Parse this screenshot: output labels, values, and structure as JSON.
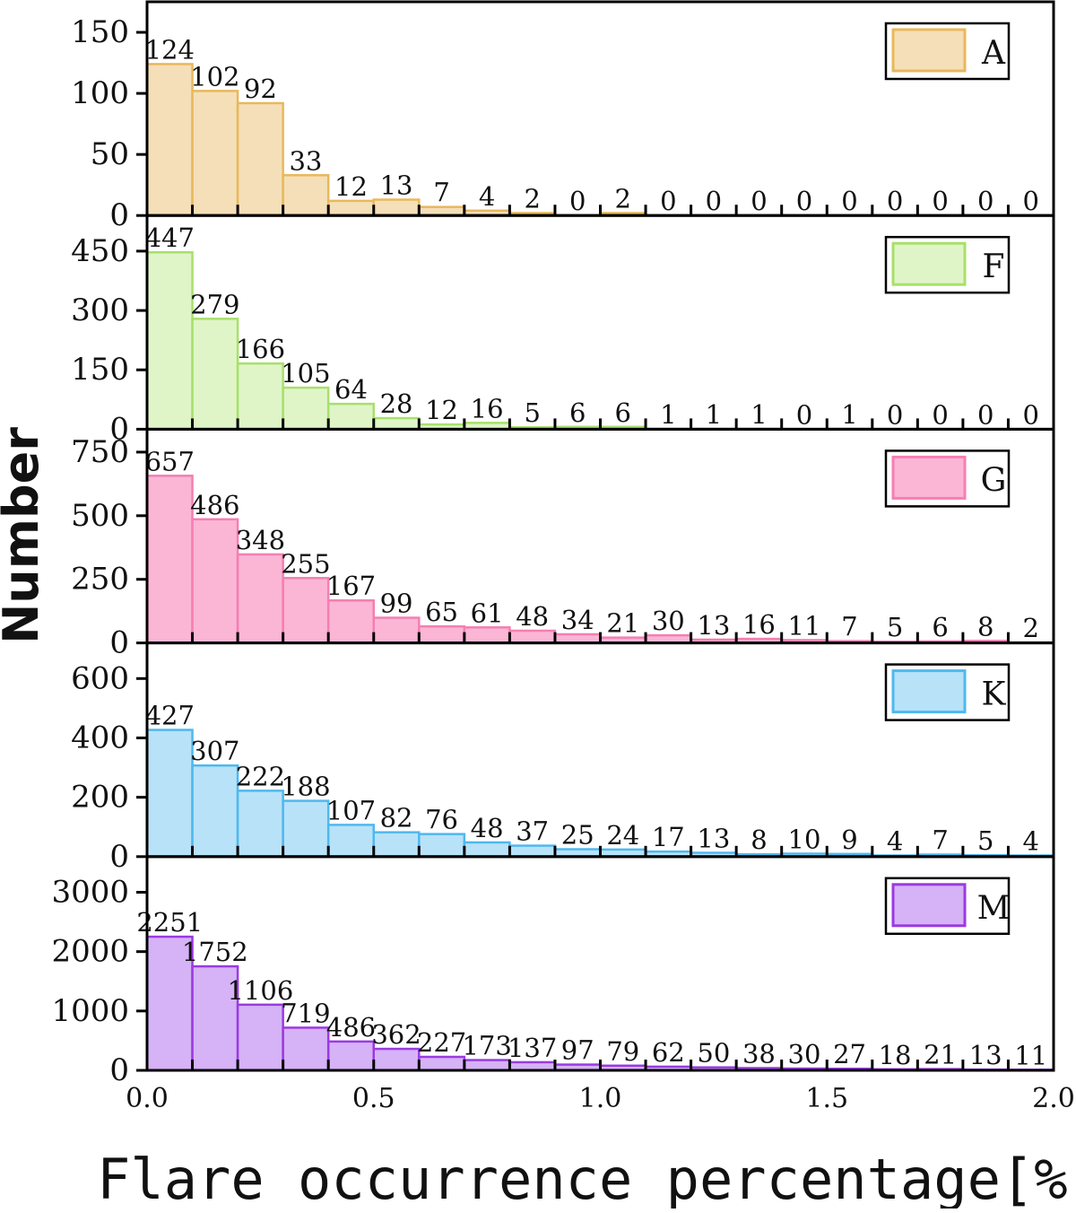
{
  "chart_data": {
    "type": "bar",
    "layout": "stacked-panels",
    "xlabel": "Flare occurrence percentage[%]",
    "ylabel": "Number",
    "xlim": [
      0.0,
      2.0
    ],
    "bin_width": 0.1,
    "x_ticks": [
      "0.0",
      "0.5",
      "1.0",
      "1.5",
      "2.0"
    ],
    "x_tick_values": [
      0.0,
      0.5,
      1.0,
      1.5,
      2.0
    ],
    "panels": [
      {
        "name": "A",
        "legend": "A",
        "color": "#f5dfb8",
        "edge_color": "#e8b85c",
        "ylim": [
          0,
          175
        ],
        "y_ticks": [
          0,
          50,
          100,
          150
        ],
        "values": [
          124,
          102,
          92,
          33,
          12,
          13,
          7,
          4,
          2,
          0,
          2,
          0,
          0,
          0,
          0,
          0,
          0,
          0,
          0,
          0
        ]
      },
      {
        "name": "F",
        "legend": "F",
        "color": "#dff5c8",
        "edge_color": "#a8e06a",
        "ylim": [
          0,
          540
        ],
        "y_ticks": [
          0,
          150,
          300,
          450
        ],
        "values": [
          447,
          279,
          166,
          105,
          64,
          28,
          12,
          16,
          5,
          6,
          6,
          1,
          1,
          1,
          0,
          1,
          0,
          0,
          0,
          0
        ]
      },
      {
        "name": "G",
        "legend": "G",
        "color": "#fbb6d5",
        "edge_color": "#f47fb2",
        "ylim": [
          0,
          840
        ],
        "y_ticks": [
          0,
          250,
          500,
          750
        ],
        "values": [
          657,
          486,
          348,
          255,
          167,
          99,
          65,
          61,
          48,
          34,
          21,
          30,
          13,
          16,
          11,
          7,
          5,
          6,
          8,
          2
        ]
      },
      {
        "name": "K",
        "legend": "K",
        "color": "#b8e2f8",
        "edge_color": "#4fb8ee",
        "ylim": [
          0,
          720
        ],
        "y_ticks": [
          0,
          200,
          400,
          600
        ],
        "values": [
          427,
          307,
          222,
          188,
          107,
          82,
          76,
          48,
          37,
          25,
          24,
          17,
          13,
          8,
          10,
          9,
          4,
          7,
          5,
          4
        ]
      },
      {
        "name": "M",
        "legend": "M",
        "color": "#d6b2f6",
        "edge_color": "#9a3ae2",
        "ylim": [
          0,
          3600
        ],
        "y_ticks": [
          0,
          1000,
          2000,
          3000
        ],
        "values": [
          2251,
          1752,
          1106,
          719,
          486,
          362,
          227,
          173,
          137,
          97,
          79,
          62,
          50,
          38,
          30,
          27,
          18,
          21,
          13,
          11
        ]
      }
    ]
  }
}
